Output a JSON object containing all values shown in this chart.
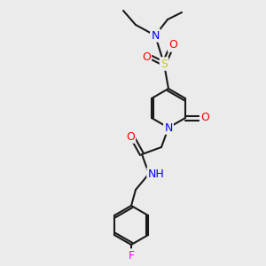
{
  "bg_color": "#ebebeb",
  "bond_color": "#1a1a1a",
  "bond_width": 1.5,
  "atom_colors": {
    "N": "#0000ff",
    "O": "#ff0000",
    "S": "#cccc00",
    "F": "#ff00ff",
    "H": "#4a8a8a",
    "C": "#1a1a1a"
  },
  "font_size": 9,
  "bold_font_size": 9
}
